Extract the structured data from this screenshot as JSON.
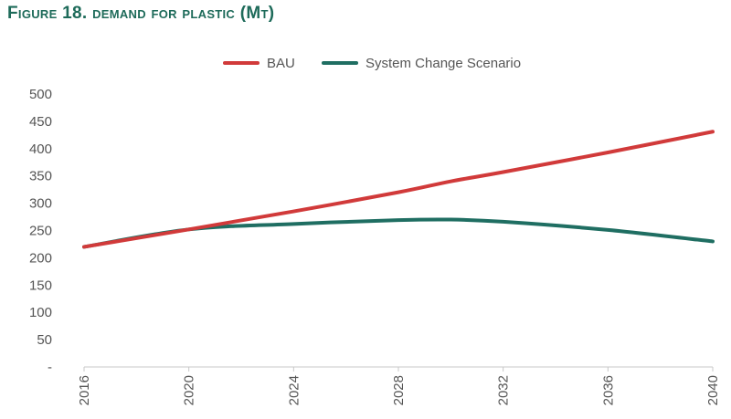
{
  "title_parts": {
    "figure": "Figure 18.",
    "text": "demand for plastic",
    "unit": "(Mt)"
  },
  "chart_data": {
    "type": "line",
    "title": "Figure 18. demand for plastic (Mt)",
    "xlabel": "",
    "ylabel": "",
    "x_ticks": [
      "2016",
      "2020",
      "2024",
      "2028",
      "2032",
      "2036",
      "2040"
    ],
    "y_tick_labels": [
      "-",
      "50",
      "100",
      "150",
      "200",
      "250",
      "300",
      "350",
      "400",
      "450",
      "500"
    ],
    "ylim": [
      0,
      500
    ],
    "xlim": [
      2016,
      2040
    ],
    "grid": false,
    "legend_position": "top-center",
    "series": [
      {
        "name": "BAU",
        "color": "#d13a3a",
        "x": [
          2016,
          2020,
          2024,
          2028,
          2030,
          2032,
          2036,
          2040
        ],
        "values": [
          220,
          252,
          285,
          320,
          340,
          357,
          393,
          431
        ]
      },
      {
        "name": "System Change Scenario",
        "color": "#1f6e62",
        "x": [
          2016,
          2020,
          2024,
          2028,
          2030,
          2032,
          2036,
          2040
        ],
        "values": [
          220,
          252,
          262,
          269,
          270,
          266,
          251,
          230
        ]
      }
    ]
  }
}
